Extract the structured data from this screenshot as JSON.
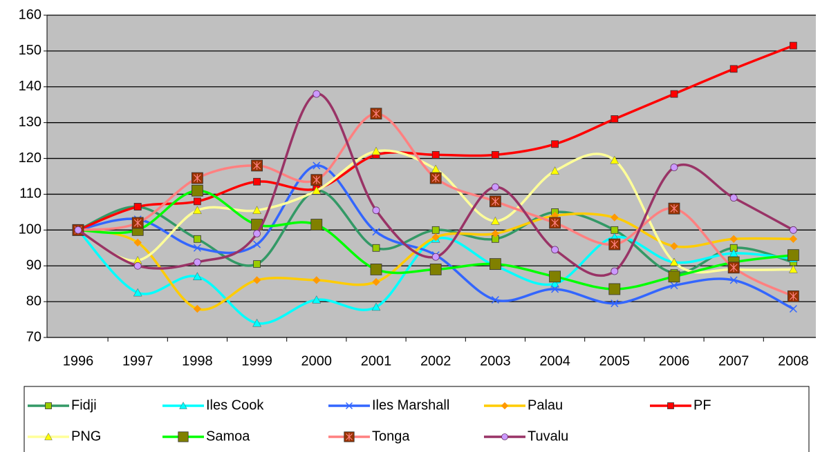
{
  "chart_data": {
    "type": "line",
    "smooth": true,
    "categories": [
      "1996",
      "1997",
      "1998",
      "1999",
      "2000",
      "2001",
      "2002",
      "2003",
      "2004",
      "2005",
      "2006",
      "2007",
      "2008"
    ],
    "ylim": [
      70,
      160
    ],
    "yticks": [
      70,
      80,
      90,
      100,
      110,
      120,
      130,
      140,
      150,
      160
    ],
    "grid": true,
    "legend": "bottom",
    "series": [
      {
        "name": "Fidji",
        "color": "#339966",
        "marker": "square",
        "marker_color": "#99cc00",
        "values": [
          100,
          106.5,
          97.5,
          90.5,
          111,
          95,
          100,
          97.5,
          105,
          100,
          88,
          95,
          91
        ]
      },
      {
        "name": "Iles Cook",
        "color": "#00ffff",
        "marker": "triangle",
        "marker_color": "#00ffff",
        "values": [
          100,
          82.5,
          87,
          74,
          80.5,
          78.5,
          97.5,
          90,
          85,
          98,
          91,
          93.5,
          92
        ]
      },
      {
        "name": "Iles Marshall",
        "color": "#3366ff",
        "marker": "x",
        "marker_color": "#3366ff",
        "values": [
          100,
          103,
          95,
          96,
          118,
          99.5,
          93,
          80.5,
          83.5,
          79.5,
          84.5,
          86,
          78
        ]
      },
      {
        "name": "Palau",
        "color": "#ffcc00",
        "marker": "diamond",
        "marker_color": "#ff9900",
        "values": [
          100,
          96.5,
          78,
          86,
          86,
          85.5,
          98,
          99,
          104,
          103.5,
          95.5,
          97.5,
          97.5
        ]
      },
      {
        "name": "PF",
        "color": "#ff0000",
        "marker": "square",
        "marker_color": "#ff0000",
        "values": [
          100,
          106.5,
          108,
          113.5,
          111.5,
          121,
          121,
          121,
          124,
          131,
          138,
          145,
          151.5
        ]
      },
      {
        "name": "PNG",
        "color": "#ffff99",
        "marker": "triangle",
        "marker_color": "#ffff00",
        "values": [
          100,
          91.5,
          105.5,
          105.5,
          111,
          122,
          117,
          102.5,
          116.5,
          119.5,
          91,
          89,
          89
        ]
      },
      {
        "name": "Samoa",
        "color": "#00ff00",
        "marker": "bigsquare",
        "marker_color": "#808000",
        "values": [
          100,
          100,
          111,
          101.5,
          101.5,
          89,
          89,
          90.5,
          87,
          83.5,
          87,
          91,
          93
        ]
      },
      {
        "name": "Tonga",
        "color": "#ff8080",
        "marker": "star",
        "marker_color": "#993300",
        "values": [
          100,
          102,
          114.5,
          118,
          114,
          132.5,
          114.5,
          108,
          102,
          96,
          106,
          89.5,
          81.5
        ]
      },
      {
        "name": "Tuvalu",
        "color": "#993366",
        "marker": "circle",
        "marker_color": "#cc99ff",
        "values": [
          100,
          90,
          91,
          99,
          138,
          105.5,
          92.5,
          112,
          94.5,
          88.5,
          117.5,
          109,
          100
        ]
      }
    ]
  }
}
